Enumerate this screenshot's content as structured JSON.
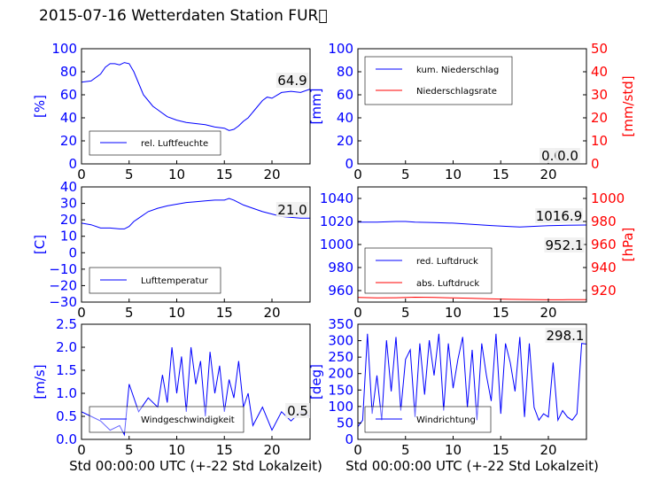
{
  "title": "2015-07-16 Wetterdaten Station FUR\u0000",
  "chart_data": [
    {
      "id": "humidity",
      "type": "line",
      "ylabel": "[%]",
      "ylim": [
        0,
        100
      ],
      "yticks": [
        "0",
        "20",
        "40",
        "60",
        "80",
        "100"
      ],
      "xlim": [
        0,
        24
      ],
      "xticks": [
        "0",
        "5",
        "10",
        "15",
        "20"
      ],
      "legend": [
        "rel. Luftfeuchte"
      ],
      "value_labels": [
        "64.9"
      ],
      "series": [
        {
          "name": "rel. Luftfeuchte",
          "color": "#0000ff",
          "x": [
            0,
            1,
            2,
            2.5,
            3,
            3.5,
            4,
            4.5,
            5,
            5.5,
            6,
            6.5,
            7,
            7.5,
            8,
            9,
            10,
            11,
            12,
            13,
            14,
            15,
            15.5,
            16,
            16.5,
            17,
            17.5,
            18,
            18.5,
            19,
            19.5,
            20,
            21,
            22,
            23,
            24
          ],
          "y": [
            71,
            72,
            78,
            84,
            87,
            87,
            86,
            88,
            87,
            80,
            70,
            60,
            55,
            50,
            47,
            41,
            38,
            36,
            35,
            34,
            32,
            31,
            29,
            30,
            33,
            37,
            40,
            45,
            50,
            55,
            58,
            57,
            62,
            63,
            62,
            64.9
          ]
        }
      ]
    },
    {
      "id": "precipitation",
      "type": "line",
      "ylabel": "[mm]",
      "ylabel_right": "[mm/std]",
      "ylim": [
        0,
        100
      ],
      "ylim_right": [
        0,
        50
      ],
      "yticks": [
        "0",
        "20",
        "40",
        "60",
        "80",
        "100"
      ],
      "yticks_right": [
        "0",
        "10",
        "20",
        "30",
        "40",
        "50"
      ],
      "xlim": [
        0,
        24
      ],
      "xticks": [
        "0",
        "5",
        "10",
        "15",
        "20"
      ],
      "legend": [
        "kum. Niederschlag",
        "Niederschlagsrate"
      ],
      "value_labels": [
        "0.0",
        "0.0"
      ],
      "series": [
        {
          "name": "kum. Niederschlag",
          "color": "#0000ff",
          "x": [
            0,
            24
          ],
          "y": [
            0,
            0
          ]
        },
        {
          "name": "Niederschlagsrate",
          "color": "#ff0000",
          "x": [
            0,
            24
          ],
          "y": [
            0,
            0
          ]
        }
      ]
    },
    {
      "id": "temperature",
      "type": "line",
      "ylabel": "[C]",
      "ylim": [
        -30,
        40
      ],
      "yticks": [
        "−30",
        "−20",
        "−10",
        "0",
        "10",
        "20",
        "30",
        "40"
      ],
      "xlim": [
        0,
        24
      ],
      "xticks": [
        "0",
        "5",
        "10",
        "15",
        "20"
      ],
      "legend": [
        "Lufttemperatur"
      ],
      "value_labels": [
        "21.0"
      ],
      "series": [
        {
          "name": "Lufttemperatur",
          "color": "#0000ff",
          "x": [
            0,
            1,
            2,
            3,
            4,
            4.5,
            5,
            5.5,
            6,
            7,
            8,
            9,
            10,
            11,
            12,
            13,
            14,
            15,
            15.5,
            16,
            17,
            18,
            19,
            20,
            21,
            22,
            23,
            24
          ],
          "y": [
            18,
            17,
            15,
            15,
            14.5,
            14.5,
            16,
            19,
            21,
            25,
            27,
            28.5,
            29.5,
            30.5,
            31,
            31.5,
            32,
            32,
            33,
            32,
            29,
            27,
            25,
            23.5,
            22,
            21.5,
            21,
            21
          ]
        }
      ]
    },
    {
      "id": "pressure",
      "type": "line",
      "ylabel_right": "[hPa]",
      "ylim": [
        950,
        1050
      ],
      "ylim_right": [
        910,
        1010
      ],
      "yticks": [
        "960",
        "980",
        "1000",
        "1020",
        "1040"
      ],
      "yticks_right": [
        "920",
        "940",
        "960",
        "980",
        "1000"
      ],
      "xlim": [
        0,
        24
      ],
      "xticks": [
        "0",
        "5",
        "10",
        "15",
        "20"
      ],
      "legend": [
        "red. Luftdruck",
        "abs. Luftdruck"
      ],
      "value_labels": [
        "1016.9",
        "952.1"
      ],
      "series": [
        {
          "name": "red. Luftdruck",
          "color": "#0000ff",
          "x": [
            0,
            2,
            4,
            5,
            6,
            8,
            10,
            12,
            14,
            16,
            17,
            18,
            20,
            22,
            24
          ],
          "y": [
            1019.5,
            1019.5,
            1020,
            1020,
            1019.5,
            1019,
            1018.5,
            1017.5,
            1016.5,
            1015.5,
            1015.2,
            1015.5,
            1016.3,
            1016.8,
            1016.9
          ]
        },
        {
          "name": "abs. Luftdruck",
          "color": "#ff0000",
          "x": [
            0,
            2,
            4,
            6,
            8,
            10,
            12,
            14,
            16,
            18,
            20,
            22,
            24
          ],
          "y": [
            954,
            953.6,
            953.8,
            954.2,
            954,
            953.6,
            953.2,
            952.8,
            952.4,
            952.2,
            952,
            952.1,
            952.1
          ]
        }
      ]
    },
    {
      "id": "wind_speed",
      "type": "line",
      "ylabel": "[m/s]",
      "xlabel": "Std 00:00:00 UTC (+-22 Std Lokalzeit)",
      "ylim": [
        0,
        2.5
      ],
      "yticks": [
        "0.0",
        "0.5",
        "1.0",
        "1.5",
        "2.0",
        "2.5"
      ],
      "xlim": [
        0,
        24
      ],
      "xticks": [
        "0",
        "5",
        "10",
        "15",
        "20"
      ],
      "legend": [
        "Windgeschwindigkeit"
      ],
      "value_labels": [
        "0.5"
      ],
      "series": [
        {
          "name": "Windgeschwindigkeit",
          "color": "#0000ff",
          "x": [
            0,
            1,
            2,
            3,
            4,
            4.5,
            5,
            6,
            7,
            8,
            8.5,
            9,
            9.5,
            10,
            10.5,
            11,
            11.5,
            12,
            12.5,
            13,
            13.5,
            14,
            14.5,
            15,
            15.5,
            16,
            16.5,
            17,
            17.5,
            18,
            19,
            20,
            21,
            22,
            23,
            24
          ],
          "y": [
            0.6,
            0.5,
            0.4,
            0.2,
            0.3,
            0.1,
            1.2,
            0.6,
            0.9,
            0.7,
            1.4,
            0.8,
            2.0,
            1.0,
            1.8,
            0.6,
            2.0,
            1.2,
            1.7,
            0.5,
            1.9,
            1.0,
            1.6,
            0.6,
            1.3,
            0.9,
            1.7,
            0.7,
            1.0,
            0.3,
            0.7,
            0.2,
            0.6,
            0.4,
            0.6,
            0.5
          ]
        }
      ]
    },
    {
      "id": "wind_direction",
      "type": "line",
      "ylabel": "[deg]",
      "xlabel": "Std 00:00:00 UTC (+-22 Std Lokalzeit)",
      "ylim": [
        0,
        360
      ],
      "yticks": [
        "0",
        "50",
        "100",
        "150",
        "200",
        "250",
        "300",
        "350"
      ],
      "xlim": [
        0,
        24
      ],
      "xticks": [
        "0",
        "5",
        "10",
        "15",
        "20"
      ],
      "legend": [
        "Windrichtung"
      ],
      "value_labels": [
        "298.1"
      ],
      "series": [
        {
          "name": "Windrichtung",
          "color": "#0000ff",
          "x": [
            0,
            0.5,
            1,
            1.5,
            2,
            2.5,
            3,
            3.5,
            4,
            4.5,
            5,
            5.5,
            6,
            6.5,
            7,
            7.5,
            8,
            8.5,
            9,
            9.5,
            10,
            10.5,
            11,
            11.5,
            12,
            12.5,
            13,
            13.5,
            14,
            14.5,
            15,
            15.5,
            16,
            16.5,
            17,
            17.5,
            18,
            18.5,
            19,
            19.5,
            20,
            20.5,
            21,
            21.5,
            22,
            22.5,
            23,
            23.5,
            24
          ],
          "y": [
            40,
            60,
            330,
            80,
            200,
            60,
            310,
            150,
            320,
            90,
            250,
            280,
            70,
            300,
            140,
            310,
            200,
            330,
            90,
            300,
            160,
            250,
            320,
            100,
            280,
            60,
            300,
            200,
            120,
            330,
            80,
            300,
            240,
            150,
            320,
            70,
            300,
            100,
            60,
            80,
            70,
            240,
            60,
            90,
            70,
            60,
            80,
            300,
            298.1
          ]
        }
      ]
    }
  ]
}
